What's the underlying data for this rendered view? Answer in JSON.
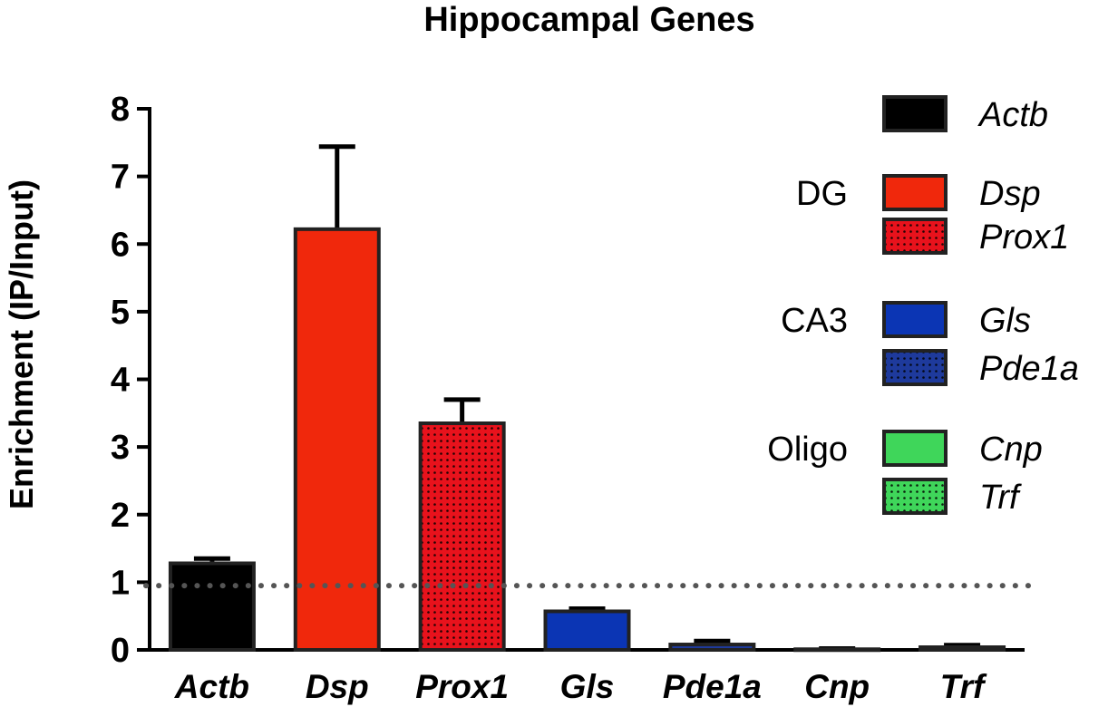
{
  "chart_data": {
    "type": "bar",
    "title": "Hippocampal Genes",
    "xlabel": "",
    "ylabel": "Enrichment (IP/Input)",
    "ylim": [
      0,
      8
    ],
    "yticks": [
      0,
      1,
      2,
      3,
      4,
      5,
      6,
      7,
      8
    ],
    "reference_line": {
      "y": 0.95,
      "style": "dotted"
    },
    "categories": [
      "Actb",
      "Dsp",
      "Prox1",
      "Gls",
      "Pde1a",
      "Cnp",
      "Trf"
    ],
    "values": [
      1.28,
      6.22,
      3.35,
      0.57,
      0.08,
      0.01,
      0.04
    ],
    "errors": [
      0.07,
      1.22,
      0.35,
      0.04,
      0.05,
      0.01,
      0.03
    ],
    "colors": [
      "#000000",
      "#f0280c",
      "#e8121c",
      "#0b35b4",
      "#1e3a9c",
      "#3fd65a",
      "#3fd65a"
    ],
    "patterns": [
      "solid",
      "solid",
      "dotted",
      "solid",
      "dotted",
      "solid",
      "dotted"
    ],
    "legend": {
      "position": "right",
      "entries": [
        {
          "label": "Actb",
          "group": "",
          "color": "#000000",
          "pattern": "solid"
        },
        {
          "label": "Dsp",
          "group": "DG",
          "color": "#f0280c",
          "pattern": "solid"
        },
        {
          "label": "Prox1",
          "group": "",
          "color": "#e8121c",
          "pattern": "dotted"
        },
        {
          "label": "Gls",
          "group": "CA3",
          "color": "#0b35b4",
          "pattern": "solid"
        },
        {
          "label": "Pde1a",
          "group": "",
          "color": "#1e3a9c",
          "pattern": "dotted"
        },
        {
          "label": "Cnp",
          "group": "Oligo",
          "color": "#3fd65a",
          "pattern": "solid"
        },
        {
          "label": "Trf",
          "group": "",
          "color": "#3fd65a",
          "pattern": "dotted"
        }
      ]
    }
  }
}
